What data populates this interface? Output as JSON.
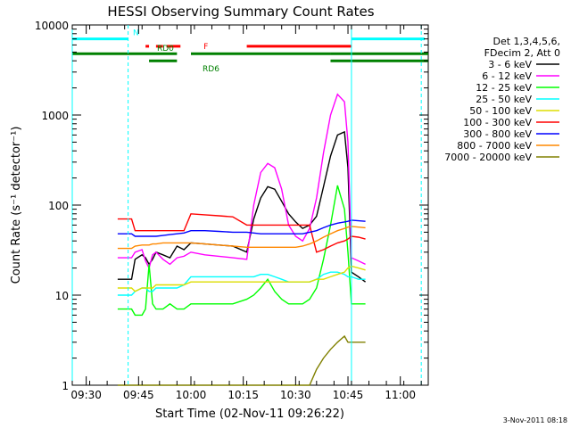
{
  "chart_data": {
    "type": "line",
    "title": "HESSI Observing Summary Count Rates",
    "xlabel": "Start Time (02-Nov-11 09:26:22)",
    "ylabel": "Count Rate (s⁻¹ detector⁻¹)",
    "y_scale": "log",
    "ylim": [
      1,
      10000
    ],
    "xlim": [
      "09:26",
      "11:08"
    ],
    "x_ticks": [
      "09:30",
      "09:45",
      "10:00",
      "10:15",
      "10:30",
      "10:45",
      "11:00"
    ],
    "y_ticks": [
      "1",
      "10",
      "100",
      "1000",
      "10000"
    ],
    "grid": false,
    "legend_position": "right",
    "legend_header": [
      "Det 1,3,4,5,6,",
      "FDecim 2, Att 0"
    ],
    "timestamp": "3-Nov-2011 08:18",
    "series": [
      {
        "name": "3 - 6 keV",
        "color": "#000000",
        "x": [
          "09:39",
          "09:40",
          "09:43",
          "09:44",
          "09:46",
          "09:47",
          "09:48",
          "09:49",
          "09:50",
          "09:52",
          "09:54",
          "09:56",
          "09:58",
          "10:00",
          "10:04",
          "10:08",
          "10:12",
          "10:16",
          "10:18",
          "10:20",
          "10:22",
          "10:24",
          "10:26",
          "10:28",
          "10:30",
          "10:32",
          "10:34",
          "10:36",
          "10:38",
          "10:40",
          "10:42",
          "10:44",
          "10:45",
          "10:46",
          "10:48",
          "10:50"
        ],
        "values": [
          15,
          15,
          15,
          25,
          28,
          26,
          22,
          25,
          30,
          28,
          26,
          35,
          32,
          38,
          37,
          36,
          35,
          30,
          70,
          120,
          160,
          150,
          110,
          80,
          65,
          55,
          60,
          75,
          160,
          350,
          600,
          650,
          260,
          18,
          16,
          14
        ]
      },
      {
        "name": "6 - 12 keV",
        "color": "#ff00ff",
        "x": [
          "09:39",
          "09:40",
          "09:43",
          "09:44",
          "09:46",
          "09:47",
          "09:48",
          "09:49",
          "09:50",
          "09:52",
          "09:54",
          "09:56",
          "09:58",
          "10:00",
          "10:04",
          "10:08",
          "10:12",
          "10:16",
          "10:18",
          "10:20",
          "10:22",
          "10:24",
          "10:26",
          "10:28",
          "10:30",
          "10:32",
          "10:34",
          "10:36",
          "10:38",
          "10:40",
          "10:42",
          "10:44",
          "10:45",
          "10:46",
          "10:48",
          "10:50"
        ],
        "values": [
          26,
          26,
          26,
          30,
          32,
          24,
          20,
          28,
          30,
          25,
          22,
          26,
          27,
          30,
          28,
          27,
          26,
          25,
          100,
          230,
          290,
          260,
          150,
          60,
          45,
          40,
          55,
          120,
          380,
          1000,
          1700,
          1400,
          500,
          26,
          24,
          22
        ]
      },
      {
        "name": "12 - 25 keV",
        "color": "#00ff00",
        "x": [
          "09:39",
          "09:40",
          "09:43",
          "09:44",
          "09:46",
          "09:47",
          "09:48",
          "09:49",
          "09:50",
          "09:52",
          "09:54",
          "09:56",
          "09:58",
          "10:00",
          "10:04",
          "10:08",
          "10:12",
          "10:16",
          "10:18",
          "10:20",
          "10:22",
          "10:24",
          "10:26",
          "10:28",
          "10:30",
          "10:32",
          "10:34",
          "10:36",
          "10:38",
          "10:40",
          "10:42",
          "10:44",
          "10:45",
          "10:46",
          "10:48",
          "10:50"
        ],
        "values": [
          7,
          7,
          7,
          6,
          6,
          7,
          22,
          8,
          7,
          7,
          8,
          7,
          7,
          8,
          8,
          8,
          8,
          9,
          10,
          12,
          15,
          11,
          9,
          8,
          8,
          8,
          9,
          12,
          25,
          60,
          165,
          90,
          30,
          8,
          8,
          8
        ]
      },
      {
        "name": "25 - 50 keV",
        "color": "#00ffff",
        "x": [
          "09:39",
          "09:40",
          "09:43",
          "09:44",
          "09:46",
          "09:47",
          "09:48",
          "09:49",
          "09:50",
          "09:52",
          "09:54",
          "09:56",
          "09:58",
          "10:00",
          "10:04",
          "10:08",
          "10:12",
          "10:16",
          "10:18",
          "10:20",
          "10:22",
          "10:24",
          "10:26",
          "10:28",
          "10:30",
          "10:32",
          "10:34",
          "10:36",
          "10:38",
          "10:40",
          "10:42",
          "10:44",
          "10:45",
          "10:46",
          "10:48",
          "10:50"
        ],
        "values": [
          10,
          10,
          10,
          11,
          12,
          12,
          11,
          11,
          12,
          12,
          12,
          12,
          13,
          16,
          16,
          16,
          16,
          16,
          16,
          17,
          17,
          16,
          15,
          14,
          14,
          14,
          14,
          15,
          17,
          18,
          18,
          17,
          16,
          16,
          15,
          15
        ]
      },
      {
        "name": "50 - 100 keV",
        "color": "#dddd00",
        "x": [
          "09:39",
          "09:40",
          "09:43",
          "09:44",
          "09:46",
          "09:47",
          "09:48",
          "09:49",
          "09:50",
          "09:52",
          "09:54",
          "09:56",
          "09:58",
          "10:00",
          "10:04",
          "10:08",
          "10:12",
          "10:16",
          "10:18",
          "10:20",
          "10:22",
          "10:24",
          "10:26",
          "10:28",
          "10:30",
          "10:32",
          "10:34",
          "10:36",
          "10:38",
          "10:40",
          "10:42",
          "10:44",
          "10:45",
          "10:46",
          "10:48",
          "10:50"
        ],
        "values": [
          12,
          12,
          12,
          11,
          12,
          12,
          12,
          12,
          13,
          13,
          13,
          13,
          13,
          14,
          14,
          14,
          14,
          14,
          14,
          14,
          14,
          14,
          14,
          14,
          14,
          14,
          14,
          15,
          15,
          16,
          17,
          18,
          20,
          21,
          20,
          19
        ]
      },
      {
        "name": "100 - 300 keV",
        "color": "#ff0000",
        "x": [
          "09:39",
          "09:40",
          "09:43",
          "09:44",
          "09:46",
          "09:47",
          "09:48",
          "09:49",
          "09:50",
          "09:52",
          "09:54",
          "09:56",
          "09:58",
          "10:00",
          "10:04",
          "10:08",
          "10:12",
          "10:16",
          "10:18",
          "10:20",
          "10:22",
          "10:24",
          "10:26",
          "10:28",
          "10:30",
          "10:32",
          "10:34",
          "10:36",
          "10:38",
          "10:40",
          "10:42",
          "10:44",
          "10:45",
          "10:46",
          "10:48",
          "10:50"
        ],
        "values": [
          70,
          70,
          70,
          52,
          52,
          52,
          52,
          52,
          52,
          52,
          52,
          52,
          52,
          80,
          78,
          76,
          74,
          60,
          60,
          60,
          60,
          60,
          60,
          60,
          60,
          60,
          60,
          30,
          32,
          35,
          38,
          40,
          42,
          45,
          44,
          42
        ]
      },
      {
        "name": "300 - 800 keV",
        "color": "#0000ff",
        "x": [
          "09:39",
          "09:40",
          "09:43",
          "09:44",
          "09:46",
          "09:47",
          "09:48",
          "09:49",
          "09:50",
          "09:52",
          "09:54",
          "09:56",
          "09:58",
          "10:00",
          "10:04",
          "10:08",
          "10:12",
          "10:16",
          "10:18",
          "10:20",
          "10:22",
          "10:24",
          "10:26",
          "10:28",
          "10:30",
          "10:32",
          "10:34",
          "10:36",
          "10:38",
          "10:40",
          "10:42",
          "10:44",
          "10:45",
          "10:46",
          "10:48",
          "10:50"
        ],
        "values": [
          48,
          48,
          48,
          45,
          45,
          45,
          45,
          45,
          45,
          46,
          47,
          48,
          49,
          52,
          52,
          51,
          50,
          50,
          49,
          48,
          48,
          48,
          48,
          48,
          48,
          48,
          50,
          52,
          56,
          60,
          63,
          65,
          66,
          68,
          67,
          66
        ]
      },
      {
        "name": "800 - 7000 keV",
        "color": "#ff8800",
        "x": [
          "09:39",
          "09:40",
          "09:43",
          "09:44",
          "09:46",
          "09:47",
          "09:48",
          "09:49",
          "09:50",
          "09:52",
          "09:54",
          "09:56",
          "09:58",
          "10:00",
          "10:04",
          "10:08",
          "10:12",
          "10:16",
          "10:18",
          "10:20",
          "10:22",
          "10:24",
          "10:26",
          "10:28",
          "10:30",
          "10:32",
          "10:34",
          "10:36",
          "10:38",
          "10:40",
          "10:42",
          "10:44",
          "10:45",
          "10:46",
          "10:48",
          "10:50"
        ],
        "values": [
          33,
          33,
          33,
          35,
          36,
          36,
          36,
          37,
          37,
          38,
          38,
          38,
          38,
          38,
          37,
          36,
          35,
          34,
          34,
          34,
          34,
          34,
          34,
          34,
          34,
          35,
          37,
          40,
          44,
          48,
          52,
          55,
          57,
          58,
          57,
          56
        ]
      },
      {
        "name": "7000 - 20000 keV",
        "color": "#808000",
        "x": [
          "09:39",
          "09:40",
          "09:43",
          "09:44",
          "09:46",
          "09:47",
          "09:48",
          "09:49",
          "09:50",
          "09:52",
          "09:54",
          "09:56",
          "09:58",
          "10:00",
          "10:04",
          "10:08",
          "10:12",
          "10:16",
          "10:18",
          "10:20",
          "10:22",
          "10:24",
          "10:26",
          "10:28",
          "10:30",
          "10:32",
          "10:34",
          "10:36",
          "10:38",
          "10:40",
          "10:42",
          "10:44",
          "10:45",
          "10:46",
          "10:48",
          "10:50"
        ],
        "values": [
          1,
          1,
          1,
          1,
          1,
          1,
          1,
          1,
          1,
          1,
          1,
          1,
          1,
          1,
          1,
          1,
          1,
          1,
          1,
          1,
          1,
          1,
          1,
          1,
          1,
          1,
          1,
          1.5,
          2,
          2.5,
          3,
          3.5,
          3,
          3,
          3,
          3
        ]
      }
    ],
    "indicator_bars": [
      {
        "label": "N",
        "color": "#00ffff",
        "value": 7000,
        "segments": [
          [
            "09:26",
            "09:42"
          ],
          [
            "10:46",
            "11:07"
          ]
        ]
      },
      {
        "label": "F",
        "color": "#ff0000",
        "value": 5800,
        "segments": [
          [
            "09:47",
            "09:48"
          ],
          [
            "09:50",
            "09:52"
          ],
          [
            "09:53",
            "09:57"
          ],
          [
            "10:16",
            "10:46"
          ]
        ]
      },
      {
        "label": "RD0",
        "color": "#008000",
        "value": 4800,
        "segments": [
          [
            "09:26",
            "09:56"
          ],
          [
            "10:00",
            "10:40"
          ],
          [
            "10:40",
            "11:08"
          ]
        ]
      },
      {
        "label": "RD6",
        "color": "#008000",
        "value": 4000,
        "segments": [
          [
            "09:48",
            "09:56"
          ],
          [
            "10:40",
            "11:08"
          ]
        ]
      }
    ],
    "vertical_markers": [
      {
        "time": "09:26",
        "color": "#00ffff",
        "style": "solid"
      },
      {
        "time": "09:42",
        "color": "#00ffff",
        "style": "dashed"
      },
      {
        "time": "10:46",
        "color": "#00ffff",
        "style": "solid"
      },
      {
        "time": "11:06",
        "color": "#00ffff",
        "style": "dashed"
      }
    ]
  }
}
